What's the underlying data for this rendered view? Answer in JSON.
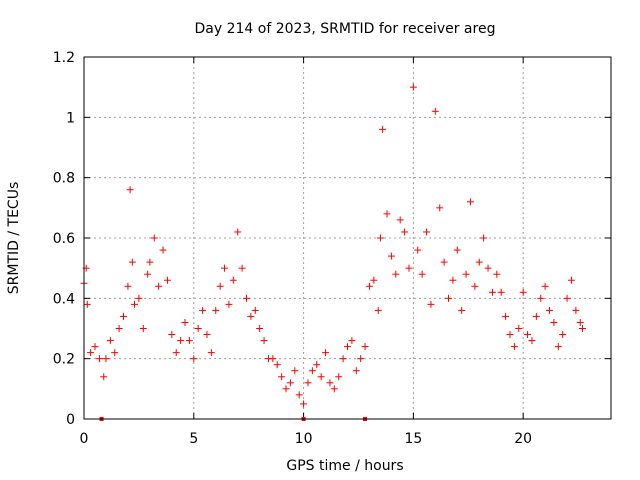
{
  "chart_data": {
    "type": "scatter",
    "title": "Day 214 of 2023, SRMTID for receiver areg",
    "xlabel": "GPS time / hours",
    "ylabel": "SRMTID / TECUs",
    "xlim": [
      0,
      24
    ],
    "ylim": [
      0,
      1.2
    ],
    "x_ticks": [
      0,
      5,
      10,
      15,
      20
    ],
    "x_tick_labels": [
      "0",
      "5",
      "10",
      "15",
      "20"
    ],
    "y_ticks": [
      0,
      0.2,
      0.4,
      0.6,
      0.8,
      1,
      1.2
    ],
    "y_tick_labels": [
      "0",
      "0.2",
      "0.4",
      "0.6",
      "0.8",
      "1",
      "1.2"
    ],
    "grid": true,
    "marker": "+",
    "color": "#ff0000",
    "series": [
      {
        "name": "SRMTID",
        "x": [
          0.0,
          0.1,
          0.15,
          0.3,
          0.5,
          0.7,
          0.9,
          1.0,
          1.2,
          1.4,
          1.6,
          1.8,
          2.0,
          2.1,
          2.2,
          2.3,
          2.5,
          2.7,
          2.9,
          3.0,
          3.2,
          3.4,
          3.6,
          3.8,
          4.0,
          4.2,
          4.4,
          4.6,
          4.8,
          5.0,
          5.2,
          5.4,
          5.6,
          5.8,
          6.0,
          6.2,
          6.4,
          6.6,
          6.8,
          7.0,
          7.2,
          7.4,
          7.6,
          7.8,
          8.0,
          8.2,
          8.4,
          8.6,
          8.8,
          9.0,
          9.2,
          9.4,
          9.6,
          9.8,
          10.0,
          10.2,
          10.4,
          10.6,
          10.8,
          11.0,
          11.2,
          11.4,
          11.6,
          11.8,
          12.0,
          12.2,
          12.4,
          12.6,
          12.8,
          13.0,
          13.2,
          13.4,
          13.5,
          13.6,
          13.8,
          14.0,
          14.2,
          14.4,
          14.6,
          14.8,
          15.0,
          15.2,
          15.4,
          15.6,
          15.8,
          16.0,
          16.2,
          16.4,
          16.6,
          16.8,
          17.0,
          17.2,
          17.4,
          17.6,
          17.8,
          18.0,
          18.2,
          18.4,
          18.6,
          18.8,
          19.0,
          19.2,
          19.4,
          19.6,
          19.8,
          20.0,
          20.2,
          20.4,
          20.6,
          20.8,
          21.0,
          21.2,
          21.4,
          21.6,
          21.8,
          22.0,
          22.2,
          22.4,
          22.6,
          22.7
        ],
        "y": [
          0.45,
          0.5,
          0.38,
          0.22,
          0.24,
          0.2,
          0.14,
          0.2,
          0.26,
          0.22,
          0.3,
          0.34,
          0.44,
          0.76,
          0.52,
          0.38,
          0.4,
          0.3,
          0.48,
          0.52,
          0.6,
          0.44,
          0.56,
          0.46,
          0.28,
          0.22,
          0.26,
          0.32,
          0.26,
          0.2,
          0.3,
          0.36,
          0.28,
          0.22,
          0.36,
          0.44,
          0.5,
          0.38,
          0.46,
          0.62,
          0.5,
          0.4,
          0.34,
          0.36,
          0.3,
          0.26,
          0.2,
          0.2,
          0.18,
          0.14,
          0.1,
          0.12,
          0.16,
          0.08,
          0.05,
          0.12,
          0.16,
          0.18,
          0.14,
          0.22,
          0.12,
          0.1,
          0.14,
          0.2,
          0.24,
          0.26,
          0.16,
          0.2,
          0.24,
          0.44,
          0.46,
          0.36,
          0.6,
          0.96,
          0.68,
          0.54,
          0.48,
          0.66,
          0.62,
          0.5,
          1.1,
          0.56,
          0.48,
          0.62,
          0.38,
          1.02,
          0.7,
          0.52,
          0.4,
          0.46,
          0.56,
          0.36,
          0.48,
          0.72,
          0.44,
          0.52,
          0.6,
          0.5,
          0.42,
          0.48,
          0.42,
          0.34,
          0.28,
          0.24,
          0.3,
          0.42,
          0.28,
          0.26,
          0.34,
          0.4,
          0.44,
          0.36,
          0.32,
          0.24,
          0.28,
          0.4,
          0.46,
          0.36,
          0.32,
          0.3
        ],
        "zero_points_x": [
          0.8,
          10.0,
          12.8
        ]
      }
    ]
  }
}
